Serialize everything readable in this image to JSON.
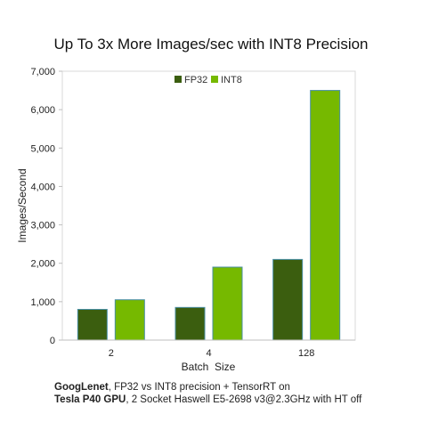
{
  "chart_data": {
    "type": "bar",
    "title": "Up To 3x More Images/sec with INT8 Precision",
    "xlabel": "Batch  Size",
    "ylabel": "Images/Second",
    "categories": [
      "2",
      "4",
      "128"
    ],
    "series": [
      {
        "name": "FP32",
        "values": [
          800,
          850,
          2100
        ],
        "color": "#3b5e0f"
      },
      {
        "name": "INT8",
        "values": [
          1050,
          1900,
          6500
        ],
        "color": "#76b900"
      }
    ],
    "ylim": [
      0,
      7000
    ],
    "yticks": [
      0,
      1000,
      2000,
      3000,
      4000,
      5000,
      6000,
      7000
    ],
    "ytick_labels": [
      "0",
      "1,000",
      "2,000",
      "3,000",
      "4,000",
      "5,000",
      "6,000",
      "7,000"
    ],
    "grid": false,
    "legend_position": "top-center"
  },
  "footnote": {
    "line1_bold": "GoogLenet",
    "line1_rest": ", FP32 vs INT8 precision + TensorRT on",
    "line2_bold": "Tesla P40 GPU",
    "line2_rest": ", 2 Socket Haswell E5-2698 v3@2.3GHz with HT off"
  }
}
